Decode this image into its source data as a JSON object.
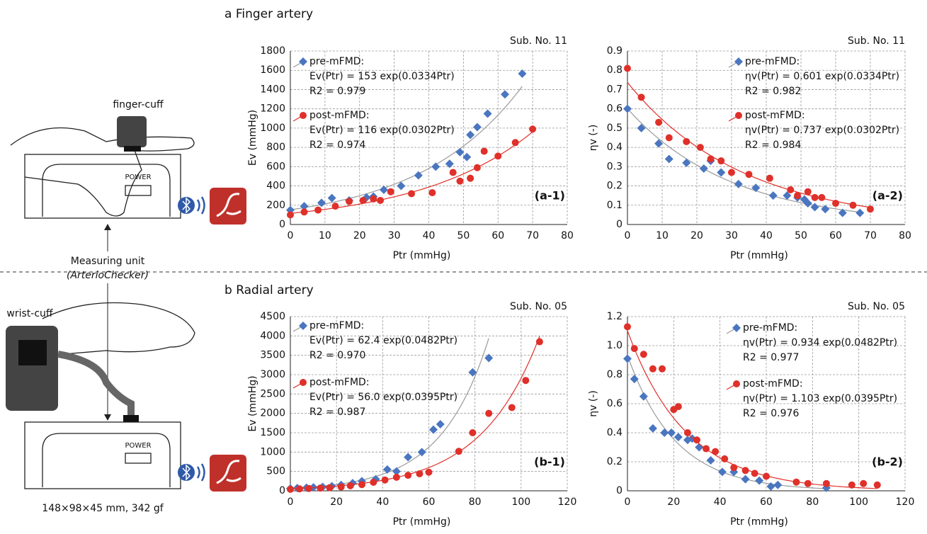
{
  "figure": {
    "heading_a": "a Finger artery",
    "heading_b": "b Radial artery"
  },
  "illustration": {
    "finger_cuff": "finger-cuff",
    "power_top": "POWER",
    "measuring_unit": "Measuring unit",
    "device": "(ArterioChecker)",
    "wrist_cuff": "wrist-cuff",
    "power_bottom": "POWER",
    "dimensions": "148×98×45 mm, 342 gf"
  },
  "chart_data": [
    {
      "type": "scatter",
      "tag": "(a-1)",
      "subject": "Sub. No. 11",
      "x_label": "Ptr (mmHg)",
      "y_label": "Ev (mmHg)",
      "xlim": [
        0,
        80
      ],
      "xticks": [
        0,
        10,
        20,
        30,
        40,
        50,
        60,
        70,
        80
      ],
      "ylim": [
        0,
        1800
      ],
      "yticks": [
        0,
        200,
        400,
        600,
        800,
        1000,
        1200,
        1400,
        1600,
        1800
      ],
      "grid": true,
      "series": [
        {
          "name": "pre-mFMD:",
          "equation": "Ev(Ptr) = 153 exp(0.0334Ptr)",
          "r_squared": "R2 = 0.979",
          "color": "#4a76c0",
          "marker": "diamond",
          "fit": {
            "a": 153,
            "b": 0.0334,
            "color": "#9a9a9a"
          },
          "x": [
            0,
            4,
            9,
            12,
            17,
            22,
            24,
            27,
            32,
            37,
            42,
            46,
            49,
            51,
            52,
            54,
            57,
            62,
            67
          ],
          "values": [
            150,
            190,
            225,
            275,
            250,
            280,
            290,
            360,
            400,
            510,
            600,
            630,
            750,
            700,
            930,
            1010,
            1150,
            1350,
            1565
          ]
        },
        {
          "name": "post-mFMD:",
          "equation": "Ev(Ptr) = 116 exp(0.0302Ptr)",
          "r_squared": "R2 = 0.974",
          "color": "#e0302a",
          "marker": "circle",
          "fit": {
            "a": 116,
            "b": 0.0302,
            "color": "#e0302a"
          },
          "x": [
            0,
            4,
            8,
            13,
            17,
            21,
            24,
            26,
            29,
            35,
            41,
            47,
            49,
            52,
            54,
            56,
            60,
            65,
            70
          ],
          "values": [
            100,
            130,
            150,
            190,
            240,
            250,
            265,
            250,
            340,
            320,
            330,
            540,
            450,
            480,
            590,
            760,
            710,
            850,
            990
          ]
        }
      ]
    },
    {
      "type": "scatter",
      "tag": "(a-2)",
      "subject": "Sub. No. 11",
      "x_label": "Ptr (mmHg)",
      "y_label": "ηv (-)",
      "xlim": [
        0,
        80
      ],
      "xticks": [
        0,
        10,
        20,
        30,
        40,
        50,
        60,
        70,
        80
      ],
      "ylim": [
        0,
        0.9
      ],
      "yticks": [
        0,
        0.1,
        0.2,
        0.3,
        0.4,
        0.5,
        0.6,
        0.7,
        0.8,
        0.9
      ],
      "grid": true,
      "series": [
        {
          "name": "pre-mFMD:",
          "equation": "ηv(Ptr) = 0.601 exp(0.0334Ptr)",
          "r_squared": "R2 = 0.982",
          "color": "#4a76c0",
          "marker": "diamond",
          "fit": {
            "a": 0.601,
            "b": -0.0334,
            "color": "#9a9a9a"
          },
          "x": [
            0,
            4,
            9,
            12,
            17,
            22,
            24,
            27,
            32,
            37,
            42,
            46,
            49,
            51,
            52,
            54,
            57,
            62,
            67
          ],
          "values": [
            0.6,
            0.5,
            0.42,
            0.34,
            0.32,
            0.29,
            0.33,
            0.27,
            0.21,
            0.19,
            0.15,
            0.15,
            0.14,
            0.13,
            0.11,
            0.09,
            0.08,
            0.06,
            0.06
          ]
        },
        {
          "name": "post-mFMD:",
          "equation": "ηv(Ptr) = 0.737 exp(0.0302Ptr)",
          "r_squared": "R2 = 0.984",
          "color": "#e0302a",
          "marker": "circle",
          "fit": {
            "a": 0.737,
            "b": -0.0302,
            "color": "#e0302a"
          },
          "x": [
            0,
            4,
            9,
            12,
            17,
            21,
            24,
            27,
            30,
            35,
            41,
            47,
            49,
            52,
            54,
            56,
            60,
            65,
            70
          ],
          "values": [
            0.81,
            0.66,
            0.53,
            0.45,
            0.43,
            0.4,
            0.34,
            0.33,
            0.27,
            0.26,
            0.24,
            0.18,
            0.15,
            0.17,
            0.14,
            0.14,
            0.11,
            0.1,
            0.08
          ]
        }
      ]
    },
    {
      "type": "scatter",
      "tag": "(b-1)",
      "subject": "Sub. No. 05",
      "x_label": "Ptr (mmHg)",
      "y_label": "Ev (mmHg)",
      "xlim": [
        0,
        120
      ],
      "xticks": [
        0,
        20,
        40,
        60,
        80,
        100,
        120
      ],
      "ylim": [
        0,
        4500
      ],
      "yticks": [
        0,
        500,
        1000,
        1500,
        2000,
        2500,
        3000,
        3500,
        4000,
        4500
      ],
      "grid": true,
      "series": [
        {
          "name": "pre-mFMD:",
          "equation": "Ev(Ptr) = 62.4 exp(0.0482Ptr)",
          "r_squared": "R2 = 0.970",
          "color": "#4a76c0",
          "marker": "diamond",
          "fit": {
            "a": 62.4,
            "b": 0.0482,
            "color": "#9a9a9a"
          },
          "x": [
            0,
            3,
            7,
            10,
            14,
            18,
            22,
            27,
            31,
            37,
            42,
            46,
            51,
            57,
            62,
            65,
            79,
            86
          ],
          "values": [
            60,
            70,
            80,
            90,
            100,
            120,
            150,
            200,
            250,
            300,
            550,
            500,
            870,
            1000,
            1580,
            1720,
            3060,
            3430
          ]
        },
        {
          "name": "post-mFMD:",
          "equation": "Ev(Ptr) = 56.0 exp(0.0395Ptr)",
          "r_squared": "R2 = 0.987",
          "color": "#e0302a",
          "marker": "circle",
          "fit": {
            "a": 56,
            "b": 0.0395,
            "color": "#e0302a"
          },
          "x": [
            0,
            4,
            8,
            13,
            17,
            22,
            26,
            31,
            36,
            41,
            46,
            51,
            56,
            60,
            73,
            79,
            86,
            96,
            102,
            108
          ],
          "values": [
            40,
            50,
            60,
            70,
            80,
            100,
            130,
            160,
            220,
            280,
            350,
            400,
            440,
            480,
            1020,
            1500,
            2000,
            2150,
            2850,
            3850
          ]
        }
      ]
    },
    {
      "type": "scatter",
      "tag": "(b-2)",
      "subject": "Sub. No. 05",
      "x_label": "Ptr (mmHg)",
      "y_label": "ηv (-)",
      "xlim": [
        0,
        120
      ],
      "xticks": [
        0,
        20,
        40,
        60,
        80,
        100,
        120
      ],
      "ylim": [
        0,
        1.2
      ],
      "yticks": [
        0,
        0.2,
        0.4,
        0.6,
        0.8,
        {
          "value": 1,
          "label": "1.0"
        },
        1.2
      ],
      "grid": true,
      "series": [
        {
          "name": "pre-mFMD:",
          "equation": "ηv(Ptr) = 0.934 exp(0.0482Ptr)",
          "r_squared": "R2 = 0.977",
          "color": "#4a76c0",
          "marker": "diamond",
          "fit": {
            "a": 0.934,
            "b": -0.0482,
            "color": "#9a9a9a"
          },
          "x": [
            0,
            3,
            7,
            11,
            16,
            19,
            22,
            26,
            28,
            31,
            36,
            41,
            46,
            51,
            57,
            62,
            65,
            86
          ],
          "values": [
            0.91,
            0.77,
            0.65,
            0.43,
            0.4,
            0.4,
            0.37,
            0.35,
            0.36,
            0.3,
            0.21,
            0.13,
            0.13,
            0.08,
            0.07,
            0.03,
            0.04,
            0.02
          ]
        },
        {
          "name": "post-mFMD:",
          "equation": "ηv(Ptr) = 1.103 exp(0.0395Ptr)",
          "r_squared": "R2 = 0.976",
          "color": "#e0302a",
          "marker": "circle",
          "fit": {
            "a": 1.103,
            "b": -0.0395,
            "color": "#e0302a"
          },
          "x": [
            0,
            3,
            7,
            11,
            15,
            20,
            22,
            26,
            30,
            34,
            38,
            42,
            46,
            51,
            55,
            60,
            73,
            78,
            86,
            97,
            102,
            108
          ],
          "values": [
            1.13,
            0.98,
            0.94,
            0.84,
            0.84,
            0.56,
            0.58,
            0.4,
            0.35,
            0.29,
            0.27,
            0.22,
            0.16,
            0.14,
            0.12,
            0.1,
            0.06,
            0.05,
            0.05,
            0.04,
            0.05,
            0.04
          ]
        }
      ]
    }
  ]
}
